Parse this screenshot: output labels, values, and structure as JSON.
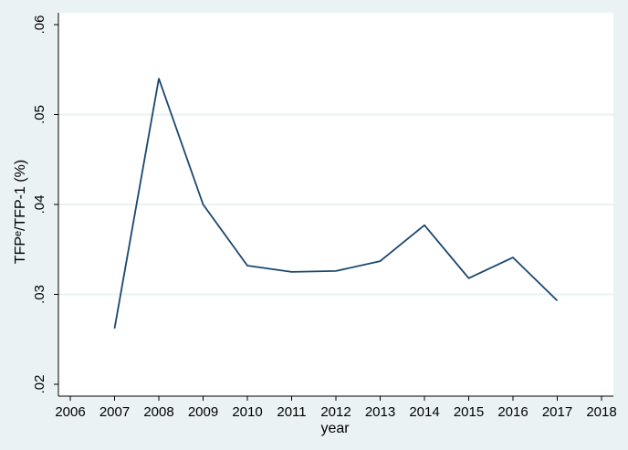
{
  "chart_data": {
    "type": "line",
    "xlabel": "year",
    "ylabel": "TFPᵉ/TFP-1 (%)",
    "xlim": [
      2006,
      2018
    ],
    "ylim": [
      0.02,
      0.06
    ],
    "x_ticks": [
      2006,
      2007,
      2008,
      2009,
      2010,
      2011,
      2012,
      2013,
      2014,
      2015,
      2016,
      2017,
      2018
    ],
    "y_ticks": [
      0.02,
      0.03,
      0.04,
      0.05,
      0.06
    ],
    "y_tick_labels": [
      ".02",
      ".03",
      ".04",
      ".05",
      ".06"
    ],
    "grid": "horizontal",
    "legend": "none",
    "background_color": "#eaf2f3",
    "plot_background_color": "#ffffff",
    "line_color": "#1a476f",
    "series": [
      {
        "x": [
          2007,
          2008,
          2009,
          2010,
          2011,
          2012,
          2013,
          2014,
          2015,
          2016,
          2017
        ],
        "values": [
          0.0262,
          0.054,
          0.04,
          0.0332,
          0.0325,
          0.0326,
          0.0337,
          0.0377,
          0.0318,
          0.0341,
          0.0293
        ]
      }
    ]
  }
}
